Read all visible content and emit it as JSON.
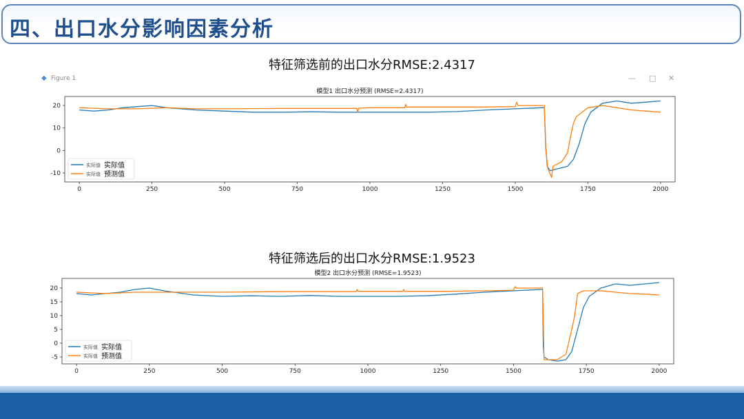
{
  "slide": {
    "title": "四、出口水分影响因素分析",
    "caption1": "特征筛选前的出口水分RMSE:2.4317",
    "caption2": "特征筛选后的出口水分RMSE:1.9523",
    "window": {
      "label": "Figure 1",
      "min": "—",
      "max": "□",
      "close": "✕"
    }
  },
  "colors": {
    "actual": "#1f77b4",
    "predicted": "#ff7f0e",
    "title_accent": "#1f4e8c",
    "band": "#1b5fa8"
  },
  "chart_data": [
    {
      "type": "line",
      "title": "模型1 出口水分预测 (RMSE=2.4317)",
      "xlim": [
        -50,
        2050
      ],
      "ylim": [
        -14,
        24
      ],
      "xticks": [
        0,
        250,
        500,
        750,
        1000,
        1250,
        1500,
        1750,
        2000
      ],
      "yticks": [
        20,
        10,
        0,
        -10
      ],
      "legend": "lower-left",
      "legend_prefix": "实际值",
      "series": [
        {
          "name": "实际值",
          "color": "#1f77b4",
          "points": [
            [
              0,
              18
            ],
            [
              50,
              17.5
            ],
            [
              100,
              18
            ],
            [
              150,
              19
            ],
            [
              200,
              19.5
            ],
            [
              250,
              20
            ],
            [
              300,
              19
            ],
            [
              400,
              18
            ],
            [
              500,
              17.5
            ],
            [
              600,
              17
            ],
            [
              700,
              17
            ],
            [
              800,
              17.2
            ],
            [
              900,
              17
            ],
            [
              1000,
              17
            ],
            [
              1100,
              17
            ],
            [
              1200,
              17
            ],
            [
              1300,
              17.3
            ],
            [
              1400,
              18
            ],
            [
              1500,
              18.5
            ],
            [
              1590,
              19
            ],
            [
              1600,
              19
            ],
            [
              1605,
              2
            ],
            [
              1610,
              -7
            ],
            [
              1620,
              -9
            ],
            [
              1650,
              -8
            ],
            [
              1680,
              -7
            ],
            [
              1700,
              -4
            ],
            [
              1720,
              3
            ],
            [
              1740,
              12
            ],
            [
              1760,
              17
            ],
            [
              1800,
              21
            ],
            [
              1850,
              22
            ],
            [
              1900,
              21
            ],
            [
              1950,
              21.5
            ],
            [
              2000,
              22
            ]
          ]
        },
        {
          "name": "预测值",
          "color": "#ff7f0e",
          "points": [
            [
              0,
              19
            ],
            [
              100,
              18.5
            ],
            [
              200,
              18.5
            ],
            [
              300,
              19
            ],
            [
              400,
              18.5
            ],
            [
              500,
              18.5
            ],
            [
              700,
              18.7
            ],
            [
              955,
              18.7
            ],
            [
              958,
              17
            ],
            [
              961,
              18.8
            ],
            [
              1000,
              19
            ],
            [
              1120,
              19
            ],
            [
              1123,
              20.5
            ],
            [
              1126,
              19.3
            ],
            [
              1250,
              19.3
            ],
            [
              1400,
              19.3
            ],
            [
              1500,
              19.5
            ],
            [
              1505,
              21.5
            ],
            [
              1510,
              20
            ],
            [
              1600,
              20
            ],
            [
              1605,
              0
            ],
            [
              1612,
              -8
            ],
            [
              1625,
              -12
            ],
            [
              1630,
              -7
            ],
            [
              1660,
              -5
            ],
            [
              1680,
              -1
            ],
            [
              1690,
              6
            ],
            [
              1700,
              12
            ],
            [
              1710,
              15
            ],
            [
              1730,
              17
            ],
            [
              1750,
              19
            ],
            [
              1800,
              20
            ],
            [
              1850,
              19
            ],
            [
              1900,
              18
            ],
            [
              1950,
              17.5
            ],
            [
              2000,
              17
            ]
          ]
        }
      ]
    },
    {
      "type": "line",
      "title": "模型2 出口水分预测 (RMSE=1.9523)",
      "xlim": [
        -50,
        2050
      ],
      "ylim": [
        -7.5,
        23.5
      ],
      "xticks": [
        0,
        250,
        500,
        750,
        1000,
        1250,
        1500,
        1750,
        2000
      ],
      "yticks": [
        20,
        15,
        10,
        5,
        0,
        -5
      ],
      "legend": "lower-left",
      "legend_prefix": "实际值",
      "series": [
        {
          "name": "实际值",
          "color": "#1f77b4",
          "points": [
            [
              0,
              18
            ],
            [
              50,
              17.5
            ],
            [
              100,
              18
            ],
            [
              150,
              18.5
            ],
            [
              200,
              19.5
            ],
            [
              250,
              20
            ],
            [
              300,
              19
            ],
            [
              400,
              17.5
            ],
            [
              500,
              17
            ],
            [
              600,
              17.2
            ],
            [
              700,
              17
            ],
            [
              800,
              17.3
            ],
            [
              900,
              17
            ],
            [
              1000,
              17
            ],
            [
              1100,
              17
            ],
            [
              1200,
              17.2
            ],
            [
              1300,
              17.8
            ],
            [
              1400,
              18.5
            ],
            [
              1500,
              19
            ],
            [
              1595,
              19.5
            ],
            [
              1600,
              19.5
            ],
            [
              1602,
              -1
            ],
            [
              1605,
              -5
            ],
            [
              1620,
              -6
            ],
            [
              1650,
              -6.5
            ],
            [
              1680,
              -6
            ],
            [
              1700,
              -3
            ],
            [
              1720,
              5
            ],
            [
              1740,
              13
            ],
            [
              1760,
              17
            ],
            [
              1800,
              20
            ],
            [
              1850,
              21.5
            ],
            [
              1900,
              21
            ],
            [
              1950,
              21.5
            ],
            [
              2000,
              22
            ]
          ]
        },
        {
          "name": "预测值",
          "color": "#ff7f0e",
          "points": [
            [
              0,
              18.5
            ],
            [
              100,
              18
            ],
            [
              200,
              18.5
            ],
            [
              300,
              18.5
            ],
            [
              400,
              18.5
            ],
            [
              500,
              18.5
            ],
            [
              700,
              18.7
            ],
            [
              960,
              18.7
            ],
            [
              963,
              19.5
            ],
            [
              966,
              18.8
            ],
            [
              1000,
              18.8
            ],
            [
              1120,
              18.8
            ],
            [
              1123,
              19.5
            ],
            [
              1126,
              18.8
            ],
            [
              1250,
              18.8
            ],
            [
              1400,
              19
            ],
            [
              1500,
              19.2
            ],
            [
              1505,
              20.5
            ],
            [
              1510,
              20
            ],
            [
              1600,
              20
            ],
            [
              1605,
              -6
            ],
            [
              1650,
              -6
            ],
            [
              1680,
              -4
            ],
            [
              1700,
              5
            ],
            [
              1710,
              10
            ],
            [
              1720,
              18
            ],
            [
              1740,
              19
            ],
            [
              1800,
              19
            ],
            [
              1850,
              18.5
            ],
            [
              1900,
              18
            ],
            [
              1950,
              17.8
            ],
            [
              2000,
              17.5
            ]
          ]
        }
      ]
    }
  ]
}
